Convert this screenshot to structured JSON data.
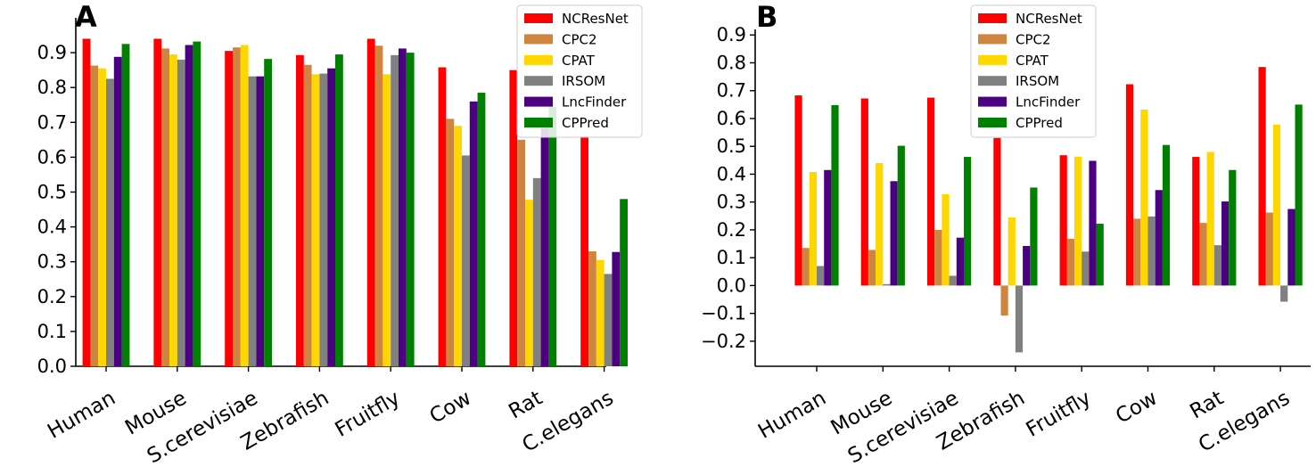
{
  "figure": {
    "panel_a_label": "A",
    "panel_b_label": "B"
  },
  "colors": {
    "NCResNet": "#fe0000",
    "CPC2": "#cd853f",
    "CPAT": "#ffd700",
    "IRSOM": "#808080",
    "LncFinder": "#4b0082",
    "CPPred": "#008000"
  },
  "chart_data": [
    {
      "type": "bar",
      "panel": "A",
      "categories": [
        "Human",
        "Mouse",
        "S.cerevisiae",
        "Zebrafish",
        "Fruitfly",
        "Cow",
        "Rat",
        "C.elegans"
      ],
      "series": [
        {
          "name": "NCResNet",
          "values": [
            0.94,
            0.94,
            0.905,
            0.893,
            0.94,
            0.858,
            0.85,
            0.66
          ]
        },
        {
          "name": "CPC2",
          "values": [
            0.863,
            0.912,
            0.915,
            0.865,
            0.92,
            0.71,
            0.65,
            0.33
          ]
        },
        {
          "name": "CPAT",
          "values": [
            0.855,
            0.895,
            0.922,
            0.838,
            0.838,
            0.69,
            0.478,
            0.305
          ]
        },
        {
          "name": "IRSOM",
          "values": [
            0.825,
            0.88,
            0.832,
            0.84,
            0.893,
            0.605,
            0.54,
            0.265
          ]
        },
        {
          "name": "LncFinder",
          "values": [
            0.888,
            0.922,
            0.832,
            0.855,
            0.912,
            0.76,
            0.69,
            0.328
          ]
        },
        {
          "name": "CPPred",
          "values": [
            0.925,
            0.932,
            0.882,
            0.895,
            0.9,
            0.785,
            0.745,
            0.48
          ]
        }
      ],
      "ylim": [
        0,
        1.0
      ],
      "yticks": [
        0.0,
        0.1,
        0.2,
        0.3,
        0.4,
        0.5,
        0.6,
        0.7,
        0.8,
        0.9
      ],
      "ytick_labels": [
        "0.0",
        "0.1",
        "0.2",
        "0.3",
        "0.4",
        "0.5",
        "0.6",
        "0.7",
        "0.8",
        "0.9"
      ],
      "legend": "top-right",
      "title": "",
      "xlabel": "",
      "ylabel": ""
    },
    {
      "type": "bar",
      "panel": "B",
      "categories": [
        "Human",
        "Mouse",
        "S.cerevisiae",
        "Zebrafish",
        "Fruitfly",
        "Cow",
        "Rat",
        "C.elegans"
      ],
      "series": [
        {
          "name": "NCResNet",
          "values": [
            0.683,
            0.672,
            0.675,
            0.53,
            0.468,
            0.723,
            0.462,
            0.785
          ]
        },
        {
          "name": "CPC2",
          "values": [
            0.135,
            0.128,
            0.2,
            -0.108,
            0.168,
            0.24,
            0.225,
            0.262
          ]
        },
        {
          "name": "CPAT",
          "values": [
            0.408,
            0.44,
            0.328,
            0.245,
            0.463,
            0.632,
            0.48,
            0.578
          ]
        },
        {
          "name": "IRSOM",
          "values": [
            0.07,
            0.005,
            0.035,
            -0.24,
            0.122,
            0.248,
            0.145,
            -0.058
          ]
        },
        {
          "name": "LncFinder",
          "values": [
            0.415,
            0.375,
            0.172,
            0.142,
            0.448,
            0.343,
            0.302,
            0.275
          ]
        },
        {
          "name": "CPPred",
          "values": [
            0.648,
            0.502,
            0.462,
            0.352,
            0.222,
            0.505,
            0.415,
            0.65
          ]
        }
      ],
      "ylim": [
        -0.29,
        0.92
      ],
      "yticks": [
        -0.2,
        -0.1,
        0.0,
        0.1,
        0.2,
        0.3,
        0.4,
        0.5,
        0.6,
        0.7,
        0.8,
        0.9
      ],
      "ytick_labels": [
        "−0.2",
        "−0.1",
        "0.0",
        "0.1",
        "0.2",
        "0.3",
        "0.4",
        "0.5",
        "0.6",
        "0.7",
        "0.8",
        "0.9"
      ],
      "legend": "top-center",
      "title": "",
      "xlabel": "",
      "ylabel": ""
    }
  ]
}
